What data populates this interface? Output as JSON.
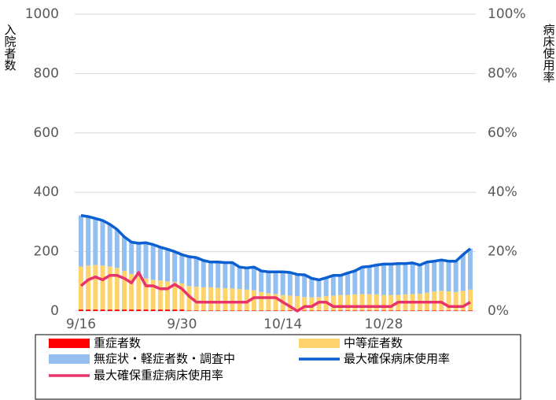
{
  "chart_data": {
    "type": "bar-line",
    "y_label": "入院者数",
    "y2_label": "病床使用率",
    "categories": [
      "9/16",
      null,
      null,
      null,
      null,
      null,
      null,
      null,
      null,
      null,
      null,
      null,
      null,
      null,
      "9/30",
      null,
      null,
      null,
      null,
      null,
      null,
      null,
      null,
      null,
      null,
      null,
      null,
      null,
      "10/14",
      null,
      null,
      null,
      null,
      null,
      null,
      null,
      null,
      null,
      null,
      null,
      null,
      null,
      "10/28",
      null,
      null,
      null,
      null,
      null,
      null,
      null,
      null,
      null,
      null,
      null,
      null
    ],
    "ylim": [
      0,
      1000
    ],
    "yticks": [
      0,
      200,
      400,
      600,
      800,
      1000
    ],
    "y2lim": [
      0,
      100
    ],
    "y2ticks": [
      {
        "value": 0,
        "label": "0%"
      },
      {
        "value": 20,
        "label": "20%"
      },
      {
        "value": 40,
        "label": "40%"
      },
      {
        "value": 60,
        "label": "60%"
      },
      {
        "value": 80,
        "label": "80%"
      },
      {
        "value": 100,
        "label": "100%"
      }
    ],
    "grid": true,
    "series": [
      {
        "name": "重症者数",
        "color": "#ff0000",
        "kind": "bar",
        "values": [
          5,
          5,
          5,
          5,
          5,
          5,
          5,
          5,
          5,
          5,
          5,
          5,
          5,
          5,
          5,
          2,
          2,
          2,
          2,
          2,
          2,
          2,
          2,
          2,
          2,
          2,
          2,
          2,
          2,
          2,
          2,
          2,
          2,
          2,
          2,
          2,
          2,
          2,
          2,
          2,
          2,
          2,
          2,
          2,
          2,
          2,
          2,
          2,
          2,
          2,
          2,
          2,
          2,
          2,
          2
        ]
      },
      {
        "name": "中等症者数",
        "color": "#ffd36b",
        "kind": "bar",
        "values": [
          145,
          148,
          150,
          148,
          145,
          140,
          130,
          120,
          112,
          105,
          100,
          98,
          95,
          92,
          88,
          82,
          80,
          78,
          78,
          76,
          75,
          74,
          72,
          70,
          68,
          62,
          58,
          55,
          52,
          50,
          48,
          45,
          44,
          45,
          48,
          50,
          52,
          52,
          54,
          55,
          55,
          54,
          52,
          52,
          52,
          54,
          55,
          56,
          60,
          64,
          66,
          64,
          62,
          66,
          70
        ]
      },
      {
        "name": "無症状・軽症者数・調査中",
        "color": "#92bff0",
        "kind": "bar",
        "values": [
          172,
          165,
          157,
          152,
          142,
          130,
          115,
          107,
          111,
          120,
          119,
          112,
          108,
          103,
          97,
          99,
          98,
          90,
          85,
          87,
          86,
          87,
          74,
          73,
          78,
          71,
          72,
          75,
          78,
          78,
          73,
          75,
          64,
          58,
          62,
          68,
          66,
          74,
          79,
          91,
          93,
          99,
          104,
          104,
          106,
          104,
          105,
          97,
          103,
          102,
          104,
          102,
          104,
          122,
          138
        ]
      },
      {
        "name": "最大確保病床使用率",
        "color": "#0b5fd0",
        "kind": "line",
        "axis": "y2",
        "values": [
          32.2,
          31.8,
          31.2,
          30.5,
          29.2,
          27.5,
          25,
          23.2,
          22.8,
          23,
          22.4,
          21.5,
          20.8,
          20,
          19,
          18.3,
          18,
          17,
          16.5,
          16.5,
          16.3,
          16.3,
          14.8,
          14.5,
          14.8,
          13.5,
          13.2,
          13.2,
          13.2,
          13,
          12.3,
          12.2,
          11,
          10.5,
          11.2,
          12,
          12,
          12.8,
          13.5,
          14.8,
          15,
          15.5,
          15.8,
          15.8,
          16,
          16,
          16.2,
          15.5,
          16.5,
          16.8,
          17.2,
          16.8,
          16.8,
          19,
          21
        ]
      },
      {
        "name": "最大確保重症病床使用率",
        "color": "#e8336b",
        "kind": "line",
        "axis": "y2",
        "values": [
          8.5,
          10.5,
          11.5,
          10.5,
          12,
          12,
          11,
          9.5,
          13,
          8.5,
          8.5,
          7.5,
          7.5,
          9,
          7.5,
          5,
          3,
          3,
          3,
          3,
          3,
          3,
          3,
          3,
          4.5,
          4.5,
          4.5,
          4.5,
          3,
          1.5,
          0,
          1.5,
          1.5,
          3,
          3,
          1.5,
          1.5,
          1.5,
          1.5,
          1.5,
          1.5,
          1.5,
          1.5,
          1.5,
          3,
          3,
          3,
          3,
          3,
          3,
          3,
          1.5,
          1.5,
          1.5,
          3
        ]
      }
    ]
  }
}
